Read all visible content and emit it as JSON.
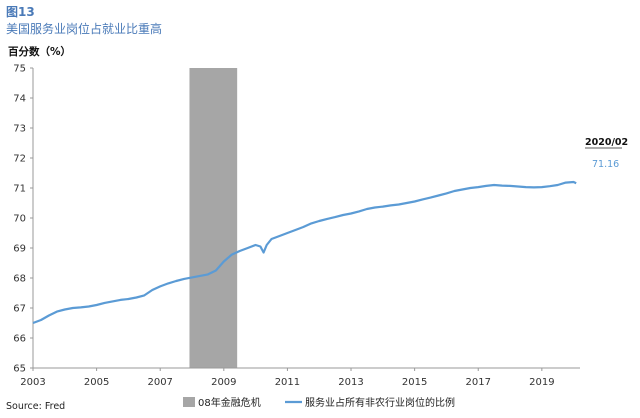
{
  "figure_label": "图13",
  "title": "美国服务业岗位占就业比重高",
  "source": "Source: Fred",
  "chart_data": {
    "type": "line",
    "ylabel": "百分数（%）",
    "xlim": [
      2003.0,
      2020.2
    ],
    "ylim": [
      65,
      75
    ],
    "yticks": [
      "65",
      "66",
      "67",
      "68",
      "69",
      "70",
      "71",
      "72",
      "73",
      "74",
      "75"
    ],
    "xticks": [
      {
        "x": 2003,
        "label": "2003"
      },
      {
        "x": 2005,
        "label": "2005"
      },
      {
        "x": 2007,
        "label": "2007"
      },
      {
        "x": 2009,
        "label": "2009"
      },
      {
        "x": 2011,
        "label": "2011"
      },
      {
        "x": 2013,
        "label": "2013"
      },
      {
        "x": 2015,
        "label": "2015"
      },
      {
        "x": 2017,
        "label": "2017"
      },
      {
        "x": 2019,
        "label": "2019"
      }
    ],
    "grid": false,
    "legend_position": "bottom",
    "shaded_region": {
      "name": "08年金融危机",
      "x_start": 2007.92,
      "x_end": 2009.42,
      "color": "#a6a6a6"
    },
    "series": [
      {
        "name": "服务业占所有非农行业岗位的比例",
        "color": "#5b9bd5",
        "x": [
          2003.0,
          2003.25,
          2003.5,
          2003.75,
          2004.0,
          2004.25,
          2004.5,
          2004.75,
          2005.0,
          2005.25,
          2005.5,
          2005.75,
          2006.0,
          2006.25,
          2006.5,
          2006.75,
          2007.0,
          2007.25,
          2007.5,
          2007.75,
          2008.0,
          2008.25,
          2008.5,
          2008.75,
          2009.0,
          2009.25,
          2009.5,
          2009.75,
          2010.0,
          2010.15,
          2010.25,
          2010.35,
          2010.5,
          2010.75,
          2011.0,
          2011.25,
          2011.5,
          2011.75,
          2012.0,
          2012.25,
          2012.5,
          2012.75,
          2013.0,
          2013.25,
          2013.5,
          2013.75,
          2014.0,
          2014.25,
          2014.5,
          2014.75,
          2015.0,
          2015.25,
          2015.5,
          2015.75,
          2016.0,
          2016.25,
          2016.5,
          2016.75,
          2017.0,
          2017.25,
          2017.5,
          2017.75,
          2018.0,
          2018.25,
          2018.5,
          2018.75,
          2019.0,
          2019.25,
          2019.5,
          2019.75,
          2020.0,
          2020.08
        ],
        "y": [
          66.5,
          66.6,
          66.75,
          66.88,
          66.95,
          67.0,
          67.02,
          67.05,
          67.1,
          67.17,
          67.22,
          67.27,
          67.3,
          67.35,
          67.42,
          67.6,
          67.72,
          67.82,
          67.9,
          67.97,
          68.02,
          68.07,
          68.12,
          68.25,
          68.55,
          68.78,
          68.9,
          69.0,
          69.1,
          69.05,
          68.85,
          69.1,
          69.3,
          69.4,
          69.5,
          69.6,
          69.7,
          69.82,
          69.9,
          69.97,
          70.03,
          70.1,
          70.15,
          70.22,
          70.3,
          70.35,
          70.38,
          70.42,
          70.45,
          70.5,
          70.55,
          70.62,
          70.68,
          70.75,
          70.82,
          70.9,
          70.95,
          71.0,
          71.03,
          71.07,
          71.1,
          71.08,
          71.07,
          71.05,
          71.03,
          71.02,
          71.03,
          71.06,
          71.1,
          71.18,
          71.2,
          71.16
        ]
      }
    ],
    "annotation": {
      "date": "2020/02",
      "value": "71.16"
    }
  }
}
